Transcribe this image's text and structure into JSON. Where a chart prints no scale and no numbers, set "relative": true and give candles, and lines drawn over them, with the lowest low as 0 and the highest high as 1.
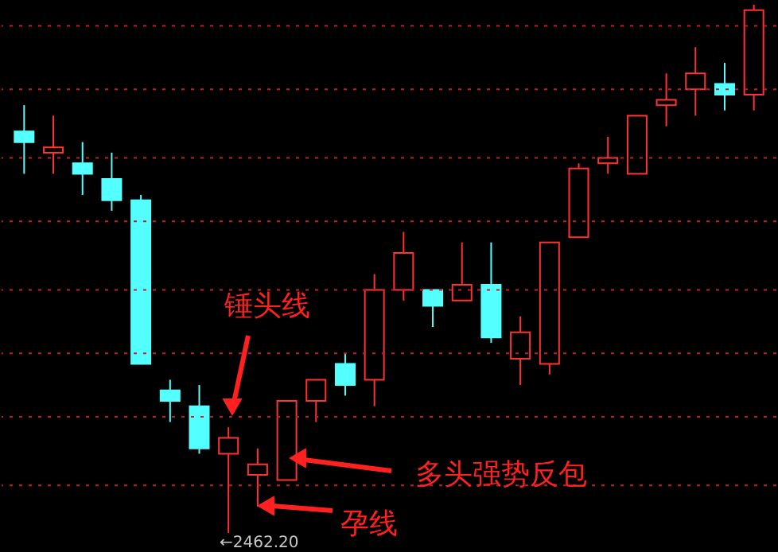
{
  "chart_data": {
    "type": "candlestick",
    "relative": true,
    "ref_lines": [
      {
        "axis": "y",
        "value": 0.09,
        "color": "#c02020",
        "line_style": "dotted"
      },
      {
        "axis": "y",
        "value": 0.22,
        "color": "#c02020",
        "line_style": "dotted"
      },
      {
        "axis": "y",
        "value": 0.34,
        "color": "#c02020",
        "line_style": "dotted"
      },
      {
        "axis": "y",
        "value": 0.46,
        "color": "#c02020",
        "line_style": "dotted"
      },
      {
        "axis": "y",
        "value": 0.59,
        "color": "#c02020",
        "line_style": "dotted"
      },
      {
        "axis": "y",
        "value": 0.71,
        "color": "#c02020",
        "line_style": "dotted"
      },
      {
        "axis": "y",
        "value": 0.84,
        "color": "#c02020",
        "line_style": "dotted"
      },
      {
        "axis": "y",
        "value": 0.96,
        "color": "#c02020",
        "line_style": "dotted"
      }
    ],
    "categories": [
      null,
      null,
      null,
      null,
      null,
      null,
      null,
      null,
      null,
      null,
      null,
      null,
      null,
      null,
      null,
      null,
      null,
      null,
      null,
      null,
      null,
      null,
      null,
      null,
      null,
      null
    ],
    "ohlc": [
      [
        0.76,
        0.81,
        0.68,
        0.74
      ],
      [
        0.72,
        0.79,
        0.68,
        0.73
      ],
      [
        0.7,
        0.74,
        0.64,
        0.68
      ],
      [
        0.67,
        0.72,
        0.61,
        0.63
      ],
      [
        0.63,
        0.64,
        0.32,
        0.32
      ],
      [
        0.27,
        0.29,
        0.21,
        0.25
      ],
      [
        0.24,
        0.28,
        0.15,
        0.16
      ],
      [
        0.15,
        0.2,
        0.0,
        0.18
      ],
      [
        0.11,
        0.16,
        0.05,
        0.13
      ],
      [
        0.1,
        0.25,
        0.1,
        0.25
      ],
      [
        0.25,
        0.29,
        0.21,
        0.29
      ],
      [
        0.32,
        0.34,
        0.26,
        0.28
      ],
      [
        0.29,
        0.49,
        0.24,
        0.46
      ],
      [
        0.46,
        0.57,
        0.44,
        0.53
      ],
      [
        0.46,
        0.46,
        0.39,
        0.43
      ],
      [
        0.44,
        0.55,
        0.44,
        0.47
      ],
      [
        0.47,
        0.55,
        0.36,
        0.37
      ],
      [
        0.33,
        0.41,
        0.28,
        0.38
      ],
      [
        0.32,
        0.55,
        0.3,
        0.55
      ],
      [
        0.56,
        0.7,
        0.56,
        0.69
      ],
      [
        0.7,
        0.75,
        0.68,
        0.71
      ],
      [
        0.68,
        0.79,
        0.68,
        0.79
      ],
      [
        0.81,
        0.87,
        0.77,
        0.82
      ],
      [
        0.84,
        0.92,
        0.79,
        0.87
      ],
      [
        0.85,
        0.89,
        0.8,
        0.83
      ],
      [
        0.83,
        1.0,
        0.8,
        0.99
      ]
    ],
    "colors": [
      "#54ffff",
      "#ff3232",
      "#54ffff",
      "#54ffff",
      "#54ffff",
      "#54ffff",
      "#54ffff",
      "#ff3232",
      "#ff3232",
      "#ff3232",
      "#ff3232",
      "#54ffff",
      "#ff3232",
      "#ff3232",
      "#54ffff",
      "#ff3232",
      "#54ffff",
      "#ff3232",
      "#ff3232",
      "#ff3232",
      "#ff3232",
      "#ff3232",
      "#ff3232",
      "#ff3232",
      "#54ffff",
      "#ff3232"
    ],
    "annotations": [
      "锤头线",
      "多头强势反包",
      "孕线",
      "←2462.20"
    ]
  }
}
